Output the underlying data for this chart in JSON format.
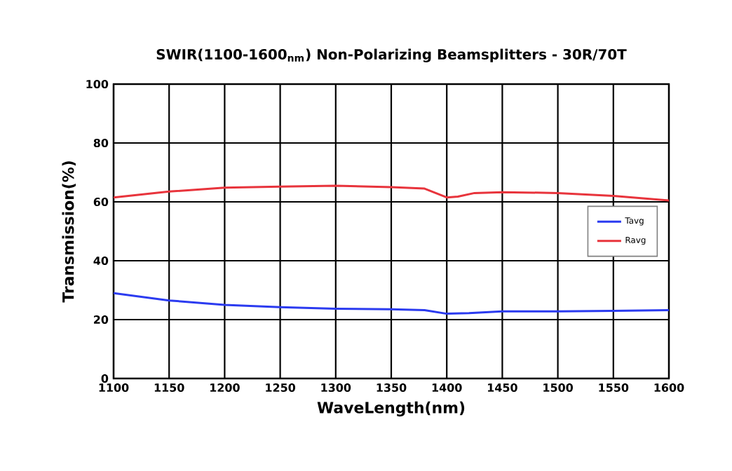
{
  "chart_data": {
    "type": "line",
    "title": "SWIR(1100-1600$_{nm}$)  Non-Polarizing Beamsplitters - 30R/70T",
    "xlabel": "WaveLength(nm)",
    "ylabel": "Transmission(%)",
    "xlim": [
      1100,
      1600
    ],
    "xticks": [
      1100,
      1150,
      1200,
      1250,
      1300,
      1350,
      1400,
      1450,
      1500,
      1550,
      1600
    ],
    "ylim": [
      0,
      100
    ],
    "yticks": [
      0,
      20,
      40,
      60,
      80,
      100
    ],
    "grid": true,
    "legend": "right",
    "marker": "none",
    "line_style": "solid",
    "series": [
      {
        "name": "Tavg",
        "color": "#2b3bf0",
        "x": [
          1100,
          1150,
          1200,
          1250,
          1300,
          1350,
          1380,
          1400,
          1420,
          1450,
          1500,
          1550,
          1600
        ],
        "values": [
          29,
          26.5,
          25,
          24.2,
          23.7,
          23.5,
          23.2,
          22,
          22.2,
          22.8,
          22.8,
          23,
          23.2
        ]
      },
      {
        "name": "Ravg",
        "color": "#e8343c",
        "x": [
          1100,
          1150,
          1200,
          1250,
          1300,
          1350,
          1380,
          1400,
          1410,
          1425,
          1450,
          1500,
          1550,
          1600
        ],
        "values": [
          61.5,
          63.5,
          64.8,
          65.2,
          65.5,
          65,
          64.5,
          61.5,
          61.8,
          63,
          63.3,
          63,
          62,
          60.5
        ]
      }
    ]
  }
}
